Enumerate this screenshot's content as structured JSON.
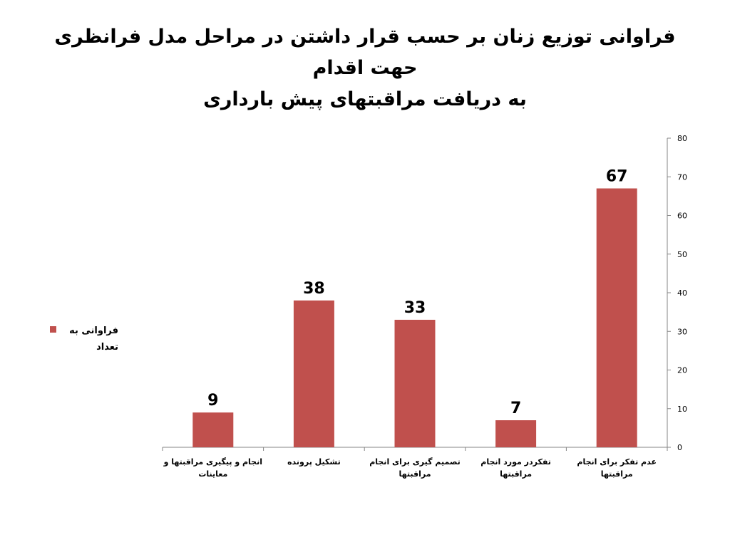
{
  "title_lines": [
    "فراوانی توزیع زنان بر حسب قرار داشتن در مراحل مدل فرانظری حهت اقدام",
    "به دریافت مراقبتهای پیش بارداری"
  ],
  "legend": {
    "label_lines": [
      "فراوانی به",
      "تعداد"
    ],
    "placement": "left"
  },
  "colors": {
    "bar": "#c0504d",
    "axis": "#868686"
  },
  "chart_data": {
    "type": "bar",
    "categories": [
      [
        "عدم  تفکر برای انجام",
        "مراقبتها"
      ],
      [
        "تفکردر مورد انجام",
        "مراقبتها"
      ],
      [
        "تصمیم گیری برای انجام",
        "مراقبتها"
      ],
      [
        "تشکیل پرونده"
      ],
      [
        "انجام و پیگیری مراقبتها و",
        "معاینات"
      ]
    ],
    "series": [
      {
        "name": "فراوانی به تعداد",
        "values": [
          67,
          7,
          33,
          38,
          9
        ]
      }
    ],
    "ylim": [
      0,
      80
    ],
    "yticks": [
      0,
      10,
      20,
      30,
      40,
      50,
      60,
      70,
      80
    ],
    "y_axis_side": "right",
    "category_order": "right-to-left",
    "grid": false,
    "xlabel": "",
    "ylabel": ""
  }
}
